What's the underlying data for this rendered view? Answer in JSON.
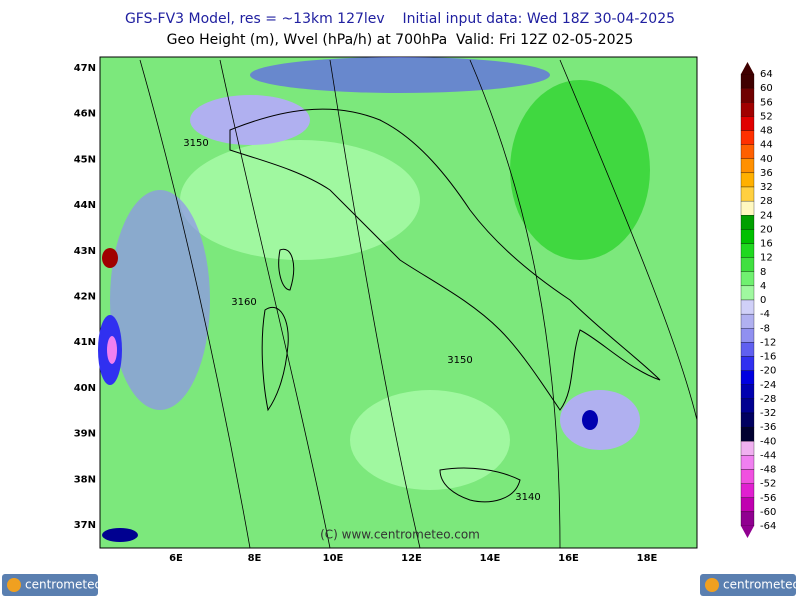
{
  "header": {
    "line1": "GFS-FV3 Model, res = ~13km 127lev    Initial input data: Wed 18Z 30-04-2025",
    "line2": "Geo Height (m), Wvel (hPa/h) at 700hPa  Valid: Fri 12Z 02-05-2025"
  },
  "map": {
    "lat_labels": [
      "47N",
      "46N",
      "45N",
      "44N",
      "43N",
      "42N",
      "41N",
      "40N",
      "39N",
      "38N",
      "37N"
    ],
    "lon_labels": [
      "6E",
      "8E",
      "10E",
      "12E",
      "14E",
      "16E",
      "18E"
    ],
    "contour_labels": [
      "3150",
      "3160",
      "3150",
      "3140"
    ],
    "watermark": "(C) www.centrometeo.com"
  },
  "colorbar": {
    "labels": [
      64,
      60,
      56,
      52,
      48,
      44,
      40,
      36,
      32,
      28,
      24,
      20,
      16,
      12,
      8,
      4,
      0,
      -4,
      -8,
      -12,
      -16,
      -20,
      -24,
      -28,
      -32,
      -36,
      -40,
      -44,
      -48,
      -52,
      -56,
      -60,
      -64
    ],
    "colors": [
      "#400000",
      "#700000",
      "#a00000",
      "#e00000",
      "#ff3000",
      "#ff6000",
      "#ff9000",
      "#ffb000",
      "#ffd040",
      "#fff8c0",
      "#00a000",
      "#00c000",
      "#20d820",
      "#40e040",
      "#70f070",
      "#a0f8a0",
      "#d0d0f8",
      "#b0b0f0",
      "#9090f0",
      "#6060f0",
      "#3030f0",
      "#0000e0",
      "#0000b0",
      "#000090",
      "#000060",
      "#000030",
      "#f0b0f0",
      "#f080f0",
      "#f050e0",
      "#e020d0",
      "#c000b0",
      "#900090"
    ]
  },
  "logos": {
    "left": "centrometeo",
    "right": "centrometeo"
  }
}
